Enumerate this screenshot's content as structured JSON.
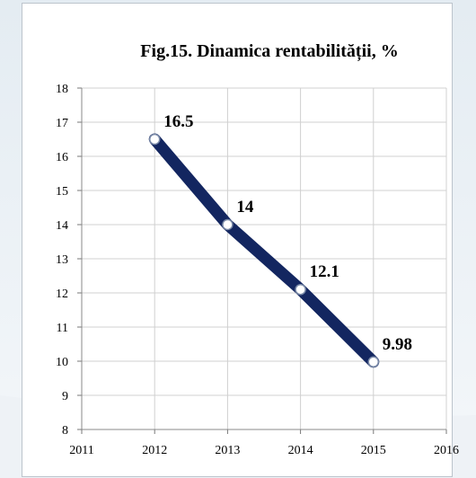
{
  "chart_data": {
    "type": "line",
    "title": "Fig.15.  Dinamica rentabilității, %",
    "xlabel": "",
    "ylabel": "",
    "x_ticks": [
      "2011",
      "2012",
      "2013",
      "2014",
      "2015",
      "2016"
    ],
    "xlim": [
      2011,
      2016
    ],
    "ylim": [
      8,
      18
    ],
    "y_ticks": [
      "8",
      "9",
      "10",
      "11",
      "12",
      "13",
      "14",
      "15",
      "16",
      "17",
      "18"
    ],
    "grid": true,
    "series": [
      {
        "x": [
          2012,
          2013,
          2014,
          2015
        ],
        "values": [
          16.5,
          14,
          12.1,
          9.98
        ],
        "labels": [
          "16.5",
          "14",
          "12.1",
          "9.98"
        ]
      }
    ],
    "colors": {
      "line": "#132660",
      "marker_fill": "#ffffff",
      "grid": "#d0d0d0",
      "background_tint": "#dfe8ef"
    }
  }
}
